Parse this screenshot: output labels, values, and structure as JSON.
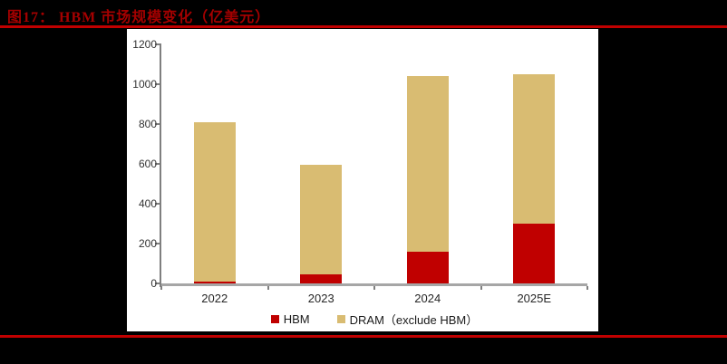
{
  "figure": {
    "title": "图17： HBM 市场规模变化（亿美元）"
  },
  "colors": {
    "background": "#000000",
    "panel": "#FFFFFF",
    "title_text": "#A40000",
    "divider_rule": "#C00000",
    "hbm_red": "#C00000",
    "dram_tan": "#D9BC72",
    "axis_gray": "#A6A6A6"
  },
  "chart_data": {
    "type": "bar",
    "stacked": true,
    "title": "HBM 市场规模变化（亿美元）",
    "categories": [
      "2022",
      "2023",
      "2024",
      "2025E"
    ],
    "series": [
      {
        "name": "HBM",
        "color": "#C00000",
        "values": [
          10,
          45,
          160,
          300
        ],
        "labels": [
          "10",
          "45",
          "160",
          "300"
        ]
      },
      {
        "name": "DRAM（exclude HBM）",
        "color": "#D9BC72",
        "values": [
          800,
          550,
          880,
          750
        ]
      }
    ],
    "totals": [
      810,
      595,
      1040,
      1050
    ],
    "xlabel": "",
    "ylabel": "",
    "ylim": [
      0,
      1200
    ],
    "yticks": [
      0,
      200,
      400,
      600,
      800,
      1000,
      1200
    ],
    "grid": false,
    "legend_position": "bottom"
  }
}
